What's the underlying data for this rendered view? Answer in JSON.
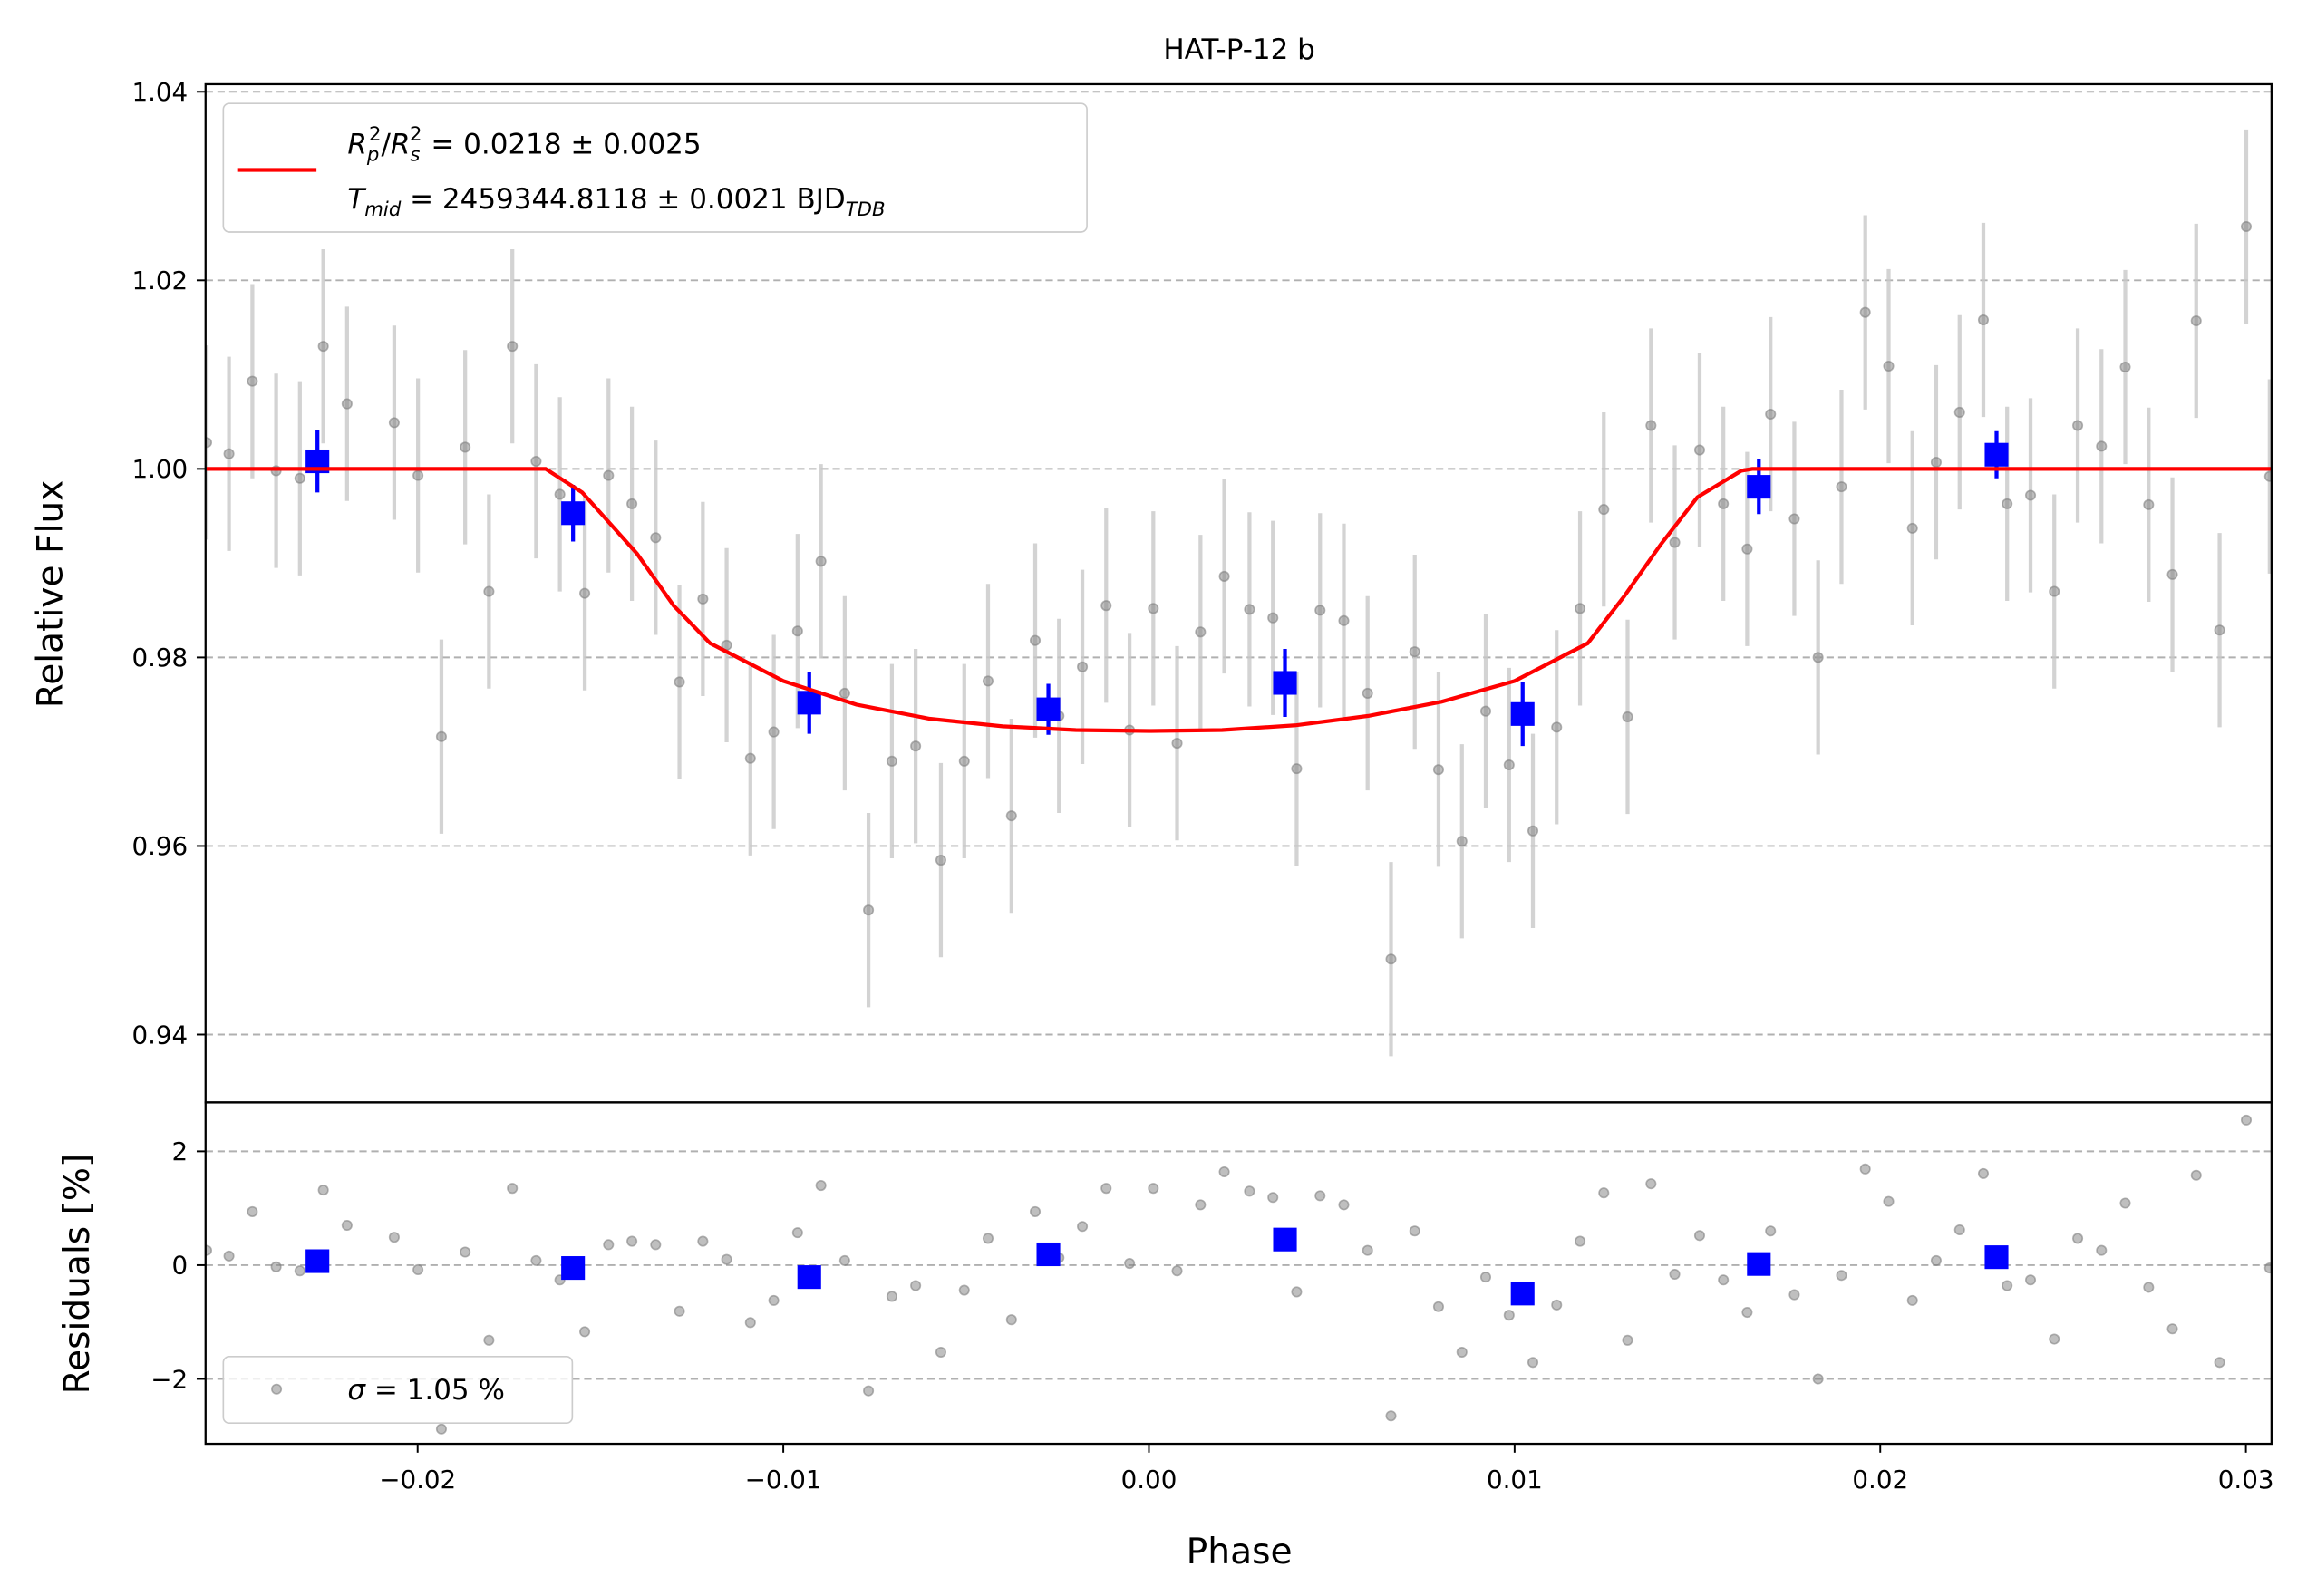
{
  "chart_data": [
    {
      "type": "scatter",
      "title": "HAT-P-12 b",
      "ylabel": "Relative Flux",
      "xlim": [
        -0.0258,
        0.0307
      ],
      "ylim": [
        0.9328,
        1.0408
      ],
      "yticks": [
        0.94,
        0.96,
        0.98,
        {
          "value": 1.0,
          "label": "1.00"
        },
        1.02,
        1.04
      ],
      "grid": true,
      "series": [
        {
          "marker": "circle",
          "color": "#808080",
          "ecolor": "#c8c8c8",
          "error": 0.0103,
          "x": [
            -0.02577,
            -0.02516,
            -0.02452,
            -0.02387,
            -0.02322,
            -0.02258,
            -0.02193,
            -0.02064,
            -0.01999,
            -0.01935,
            -0.0187,
            -0.01805,
            -0.01741,
            -0.01676,
            -0.01611,
            -0.01543,
            -0.01478,
            -0.01414,
            -0.01349,
            -0.01284,
            -0.0122,
            -0.01155,
            -0.0109,
            -0.01026,
            -0.00961,
            -0.00897,
            -0.00832,
            -0.00767,
            -0.00703,
            -0.00638,
            -0.00569,
            -0.00505,
            -0.0044,
            -0.00376,
            -0.00311,
            -0.00246,
            -0.00182,
            -0.00117,
            -0.00053,
            0.00012,
            0.00077,
            0.00141,
            0.00206,
            0.00275,
            0.00339,
            0.00404,
            0.00468,
            0.00533,
            0.00598,
            0.00662,
            0.00727,
            0.00792,
            0.00856,
            0.00921,
            0.00985,
            0.0105,
            0.01115,
            0.01179,
            0.01244,
            0.01309,
            0.01373,
            0.01438,
            0.01506,
            0.01571,
            0.01636,
            0.017,
            0.01765,
            0.0183,
            0.01894,
            0.01959,
            0.02023,
            0.02088,
            0.02153,
            0.02217,
            0.02282,
            0.02347,
            0.02411,
            0.02476,
            0.0254,
            0.02605,
            0.0267,
            0.02734,
            0.02799,
            0.02864,
            0.02928,
            0.03001,
            0.03065
          ],
          "values": [
            1.0028,
            1.0016,
            1.0093,
            0.9998,
            0.999,
            1.013,
            1.0069,
            1.0049,
            0.9993,
            0.9716,
            1.0023,
            0.987,
            1.013,
            1.0008,
            0.9973,
            0.9868,
            0.9993,
            0.9963,
            0.9927,
            0.9774,
            0.9862,
            0.9813,
            0.9693,
            0.9721,
            0.9828,
            0.9902,
            0.9762,
            0.9532,
            0.969,
            0.9706,
            0.9585,
            0.969,
            0.9775,
            0.9632,
            0.9818,
            0.9738,
            0.979,
            0.9855,
            0.9723,
            0.9852,
            0.9709,
            0.9827,
            0.9886,
            0.9851,
            0.9842,
            0.9682,
            0.985,
            0.9839,
            0.9762,
            0.948,
            0.9806,
            0.9681,
            0.9605,
            0.9743,
            0.9686,
            0.9616,
            0.9726,
            0.9852,
            0.9957,
            0.9737,
            1.0046,
            0.9922,
            1.002,
            0.9963,
            0.9915,
            1.0058,
            0.9947,
            0.98,
            0.9981,
            1.0166,
            1.0109,
            0.9937,
            1.0007,
            1.006,
            1.0158,
            0.9963,
            0.9972,
            0.987,
            1.0046,
            1.0024,
            1.0108,
            0.9962,
            0.9888,
            1.0157,
            0.9829,
            1.0257,
            0.9992
          ]
        },
        {
          "marker": "square",
          "color": "#0000ff",
          "ecolor": "#0000ff",
          "x": [
            -0.02274,
            -0.01575,
            -0.00929,
            -0.00275,
            0.00372,
            0.01022,
            0.01668,
            0.02318
          ],
          "values": [
            1.0008,
            0.9953,
            0.9752,
            0.9745,
            0.9773,
            0.974,
            0.9981,
            1.0015
          ],
          "errors": [
            0.0033,
            0.003,
            0.0033,
            0.0027,
            0.0036,
            0.0034,
            0.0029,
            0.0025
          ]
        },
        {
          "type": "line",
          "color": "#ff0000",
          "label_parts": [
            "R",
            "p",
            "2",
            "/",
            "R",
            "s",
            "2",
            " = 0.0218 ± 0.0025"
          ],
          "label2_parts": [
            "T",
            "mid",
            " = 2459344.8118 ± 0.0021 BJD",
            "TDB"
          ],
          "x": [
            -0.0258,
            -0.0165,
            -0.0155,
            -0.014,
            -0.013,
            -0.012,
            -0.01,
            -0.008,
            -0.006,
            -0.004,
            -0.002,
            0,
            0.002,
            0.004,
            0.006,
            0.008,
            0.01,
            0.012,
            0.013,
            0.014,
            0.015,
            0.0162,
            0.0165,
            0.0307
          ],
          "values": [
            1.0,
            1.0,
            0.9975,
            0.991,
            0.9855,
            0.9815,
            0.9775,
            0.975,
            0.9735,
            0.9727,
            0.9723,
            0.9722,
            0.9723,
            0.9728,
            0.9738,
            0.9753,
            0.9775,
            0.9815,
            0.9865,
            0.992,
            0.997,
            0.9998,
            1.0,
            1.0
          ]
        }
      ]
    },
    {
      "type": "scatter",
      "xlabel": "Phase",
      "ylabel": "Residuals [%]",
      "xlim": [
        -0.0258,
        0.0307
      ],
      "ylim": [
        -3.14,
        2.86
      ],
      "xticks": [
        {
          "value": -0.02,
          "label": "−0.02"
        },
        {
          "value": -0.01,
          "label": "−0.01"
        },
        {
          "value": 0,
          "label": "0.00"
        },
        0.01,
        0.02,
        0.03
      ],
      "yticks": [
        {
          "value": -2,
          "label": "−2"
        },
        0,
        2
      ],
      "grid": true,
      "legend_parts": [
        "σ",
        " = 1.05 %"
      ],
      "series": [
        {
          "marker": "circle",
          "color": "#808080",
          "x": [
            -0.02577,
            -0.02516,
            -0.02452,
            -0.02387,
            -0.02322,
            -0.02258,
            -0.02193,
            -0.02064,
            -0.01999,
            -0.01935,
            -0.0187,
            -0.01805,
            -0.01741,
            -0.01676,
            -0.01611,
            -0.01543,
            -0.01478,
            -0.01414,
            -0.01349,
            -0.01284,
            -0.0122,
            -0.01155,
            -0.0109,
            -0.01026,
            -0.00961,
            -0.00897,
            -0.00832,
            -0.00767,
            -0.00703,
            -0.00638,
            -0.00569,
            -0.00505,
            -0.0044,
            -0.00376,
            -0.00311,
            -0.00246,
            -0.00182,
            -0.00117,
            -0.00053,
            0.00012,
            0.00077,
            0.00141,
            0.00206,
            0.00275,
            0.00339,
            0.00404,
            0.00468,
            0.00533,
            0.00598,
            0.00662,
            0.00727,
            0.00792,
            0.00856,
            0.00921,
            0.00985,
            0.0105,
            0.01115,
            0.01179,
            0.01244,
            0.01309,
            0.01373,
            0.01438,
            0.01506,
            0.01571,
            0.01636,
            0.017,
            0.01765,
            0.0183,
            0.01894,
            0.01959,
            0.02023,
            0.02088,
            0.02153,
            0.02217,
            0.02282,
            0.02347,
            0.02411,
            0.02476,
            0.0254,
            0.02605,
            0.0267,
            0.02734,
            0.02799,
            0.02864,
            0.02928,
            0.03001,
            0.03065
          ],
          "values": [
            0.26,
            0.16,
            0.94,
            -0.03,
            -0.1,
            1.32,
            0.7,
            0.49,
            -0.08,
            -2.88,
            0.23,
            -1.32,
            1.35,
            0.08,
            -0.26,
            -1.17,
            0.36,
            0.42,
            0.36,
            -0.81,
            0.42,
            0.1,
            -1.01,
            -0.62,
            0.57,
            1.4,
            0.08,
            -2.21,
            -0.55,
            -0.36,
            -1.53,
            -0.44,
            0.47,
            -0.96,
            0.94,
            0.13,
            0.68,
            1.35,
            0.03,
            1.35,
            -0.1,
            1.06,
            1.64,
            1.3,
            1.19,
            -0.47,
            1.22,
            1.06,
            0.26,
            -2.65,
            0.6,
            -0.73,
            -1.53,
            -0.21,
            -0.88,
            -1.71,
            -0.7,
            0.42,
            1.27,
            -1.32,
            1.43,
            -0.16,
            0.52,
            -0.26,
            -0.83,
            0.6,
            -0.52,
            -2.0,
            -0.18,
            1.69,
            1.12,
            -0.62,
            0.08,
            0.62,
            1.61,
            -0.36,
            -0.26,
            -1.3,
            0.47,
            0.26,
            1.09,
            -0.39,
            -1.12,
            1.58,
            -1.71,
            2.55,
            -0.05
          ]
        },
        {
          "marker": "square",
          "color": "#0000ff",
          "x": [
            -0.02274,
            -0.01575,
            -0.00929,
            -0.00275,
            0.00372,
            0.01022,
            0.01668,
            0.02318
          ],
          "values": [
            0.07,
            -0.05,
            -0.21,
            0.19,
            0.45,
            -0.5,
            0.02,
            0.14
          ]
        }
      ]
    }
  ]
}
